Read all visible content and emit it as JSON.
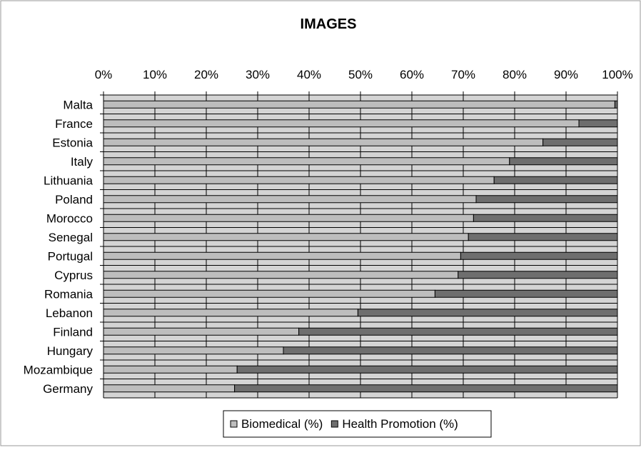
{
  "chart_data": {
    "type": "bar",
    "orientation": "horizontal",
    "stacked": "percent",
    "title": "IMAGES",
    "xlabel": "",
    "ylabel": "",
    "xlim": [
      0,
      100
    ],
    "x_ticks": [
      "0%",
      "10%",
      "20%",
      "30%",
      "40%",
      "50%",
      "60%",
      "70%",
      "80%",
      "90%",
      "100%"
    ],
    "grid": true,
    "legend_position": "bottom",
    "categories": [
      "Malta",
      "France",
      "Estonia",
      "Italy",
      "Lithuania",
      "Poland",
      "Morocco",
      "Senegal",
      "Portugal",
      "Cyprus",
      "Romania",
      "Lebanon",
      "Finland",
      "Hungary",
      "Mozambique",
      "Germany"
    ],
    "series": [
      {
        "name": "Biomedical (%)",
        "color": "#bdbdbd",
        "values": [
          99.5,
          92.5,
          85.5,
          79,
          76,
          72.5,
          72,
          71,
          69.5,
          69,
          64.5,
          49.5,
          38,
          35,
          26,
          25.5
        ]
      },
      {
        "name": "Health Promotion (%)",
        "color": "#6e6e6e",
        "values": [
          0.5,
          7.5,
          14.5,
          21,
          24,
          27.5,
          28,
          29,
          30.5,
          31,
          35.5,
          50.5,
          62,
          65,
          74,
          74.5
        ]
      }
    ],
    "colors": {
      "plot_background": "#d4d4d4",
      "grid": "#000000"
    }
  }
}
